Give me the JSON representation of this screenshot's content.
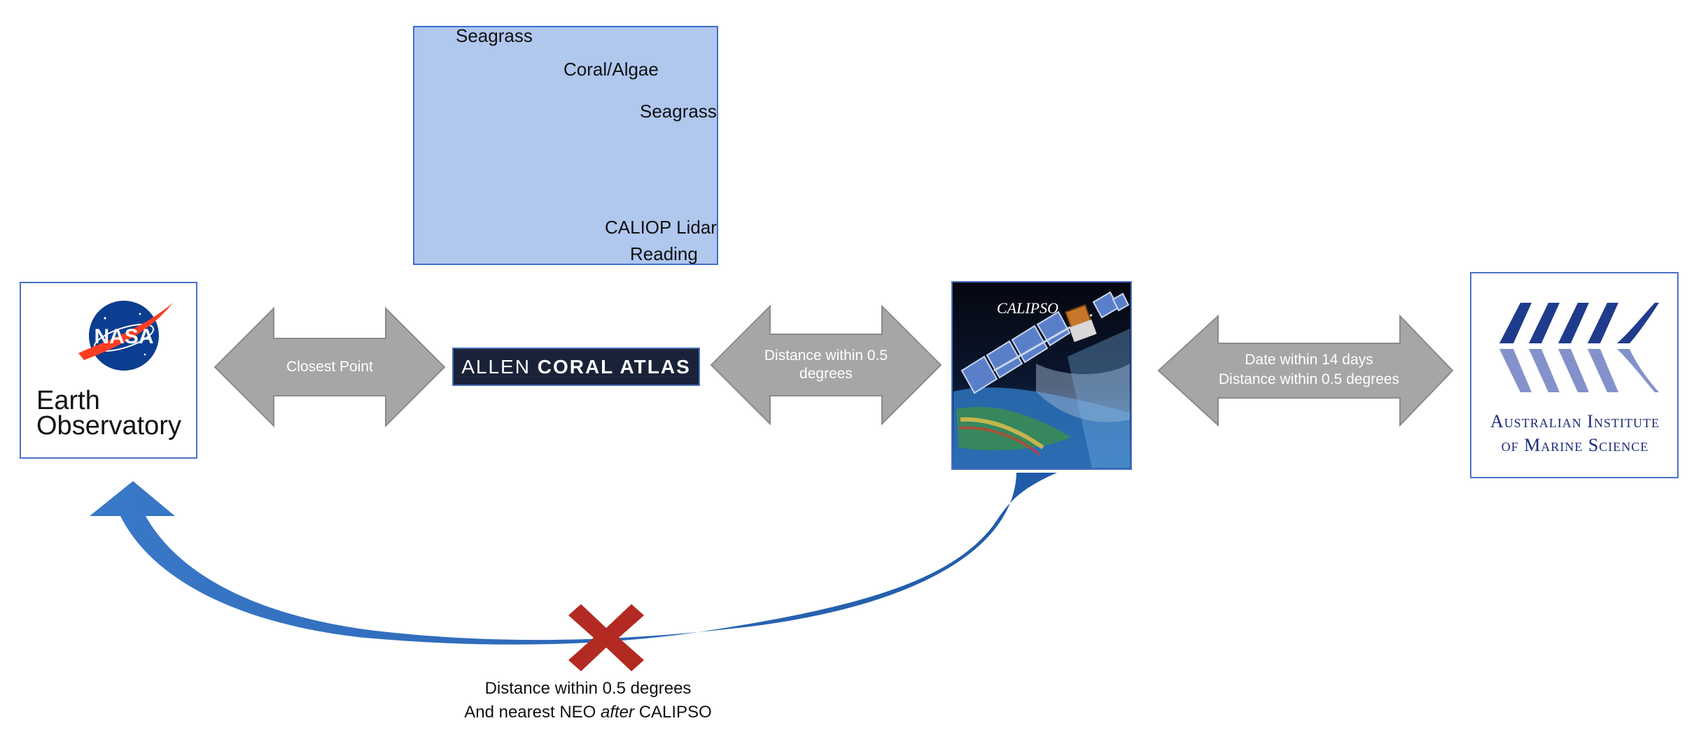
{
  "inset_map": {
    "labels": {
      "seagrass_top": "Seagrass",
      "coral_algae": "Coral/Algae",
      "seagrass_right": "Seagrass",
      "caliop_line1": "CALIOP Lidar",
      "caliop_line2": "Reading"
    }
  },
  "neo": {
    "logo_text": "NASA",
    "title_line1": "Earth",
    "title_line2": "Observatory"
  },
  "arrows": {
    "closest_point": "Closest Point",
    "distance_line1": "Distance within 0.5",
    "distance_line2": "degrees",
    "aims_line1": "Date within 14 days",
    "aims_line2": "Distance within 0.5 degrees"
  },
  "allen": {
    "word_light": "ALLEN",
    "word_bold": "CORAL ATLAS"
  },
  "calipso": {
    "label": "CALIPSO"
  },
  "aims": {
    "line1": "Australian Institute",
    "line2": "of Marine Science"
  },
  "bottom": {
    "caption_line1": "Distance within 0.5 degrees",
    "caption_prefix": "And nearest NEO ",
    "caption_italic": "after",
    "caption_suffix": " CALIPSO"
  },
  "colors": {
    "arrow_gray": "#a6a6a6",
    "curve_blue": "#2f6fc1",
    "cross_red": "#b22a22",
    "seagrass": "#e08a3a",
    "coral": "#9a4fd0",
    "star": "#5b9a45"
  }
}
